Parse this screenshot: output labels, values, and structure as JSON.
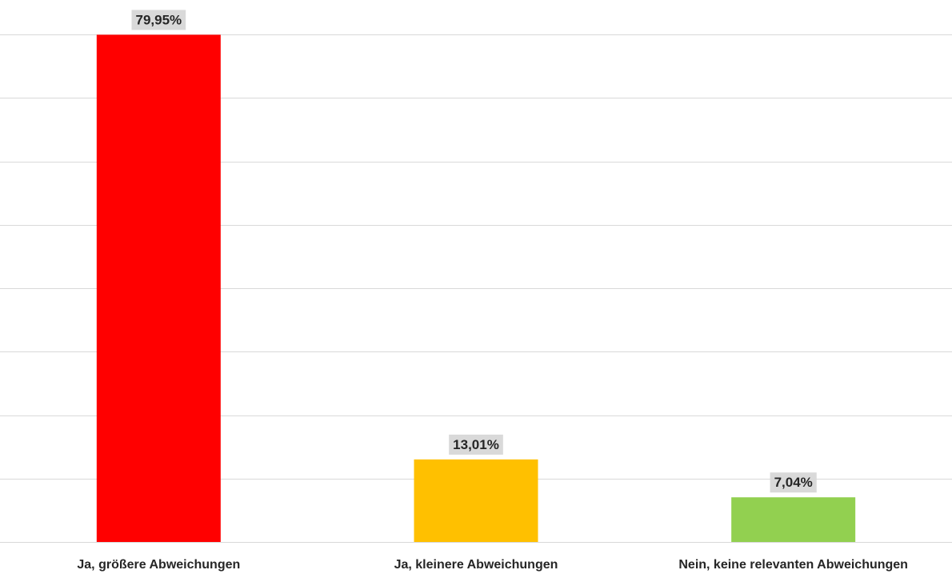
{
  "chart_data": {
    "type": "bar",
    "categories": [
      "Ja, größere Abweichungen",
      "Ja, kleinere Abweichungen",
      "Nein, keine relevanten Abweichungen"
    ],
    "values": [
      79.95,
      13.01,
      7.04
    ],
    "data_labels": [
      "79,95%",
      "13,01%",
      "7,04%"
    ],
    "colors": [
      "#ff0000",
      "#ffc000",
      "#92d050"
    ],
    "title": "",
    "xlabel": "",
    "ylabel": "",
    "ylim": [
      0,
      80
    ],
    "grid": true,
    "gridline_count": 8,
    "legend": "none"
  }
}
